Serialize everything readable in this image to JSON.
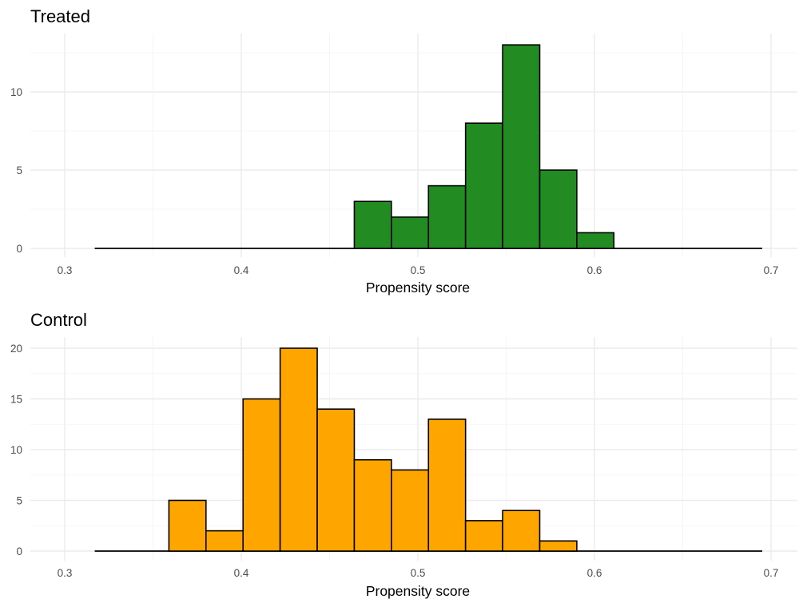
{
  "chart_data": [
    {
      "type": "bar",
      "title": "Treated",
      "xlabel": "Propensity score",
      "ylabel": "",
      "xlim": [
        0.3,
        0.7
      ],
      "ylim": [
        0,
        13
      ],
      "x_ticks": [
        "0.3",
        "0.4",
        "0.5",
        "0.6",
        "0.7"
      ],
      "y_ticks": [
        "0",
        "5",
        "10"
      ],
      "bin_width": 0.021,
      "baseline_range": [
        0.317,
        0.695
      ],
      "bars": [
        {
          "x_start": 0.464,
          "x_end": 0.485,
          "count": 3
        },
        {
          "x_start": 0.485,
          "x_end": 0.506,
          "count": 2
        },
        {
          "x_start": 0.506,
          "x_end": 0.527,
          "count": 4
        },
        {
          "x_start": 0.527,
          "x_end": 0.548,
          "count": 8
        },
        {
          "x_start": 0.548,
          "x_end": 0.569,
          "count": 13
        },
        {
          "x_start": 0.569,
          "x_end": 0.59,
          "count": 5
        },
        {
          "x_start": 0.59,
          "x_end": 0.611,
          "count": 1
        }
      ],
      "fill_color": "#228b22",
      "grid": true,
      "legend": "none"
    },
    {
      "type": "bar",
      "title": "Control",
      "xlabel": "Propensity score",
      "ylabel": "",
      "xlim": [
        0.3,
        0.7
      ],
      "ylim": [
        0,
        20
      ],
      "x_ticks": [
        "0.3",
        "0.4",
        "0.5",
        "0.6",
        "0.7"
      ],
      "y_ticks": [
        "0",
        "5",
        "10",
        "15",
        "20"
      ],
      "bin_width": 0.021,
      "baseline_range": [
        0.317,
        0.695
      ],
      "bars": [
        {
          "x_start": 0.359,
          "x_end": 0.38,
          "count": 5
        },
        {
          "x_start": 0.38,
          "x_end": 0.401,
          "count": 2
        },
        {
          "x_start": 0.401,
          "x_end": 0.422,
          "count": 15
        },
        {
          "x_start": 0.422,
          "x_end": 0.443,
          "count": 20
        },
        {
          "x_start": 0.443,
          "x_end": 0.464,
          "count": 14
        },
        {
          "x_start": 0.464,
          "x_end": 0.485,
          "count": 9
        },
        {
          "x_start": 0.485,
          "x_end": 0.506,
          "count": 8
        },
        {
          "x_start": 0.506,
          "x_end": 0.527,
          "count": 13
        },
        {
          "x_start": 0.527,
          "x_end": 0.548,
          "count": 3
        },
        {
          "x_start": 0.548,
          "x_end": 0.569,
          "count": 4
        },
        {
          "x_start": 0.569,
          "x_end": 0.59,
          "count": 1
        }
      ],
      "fill_color": "#ffa500",
      "grid": true,
      "legend": "none"
    }
  ]
}
